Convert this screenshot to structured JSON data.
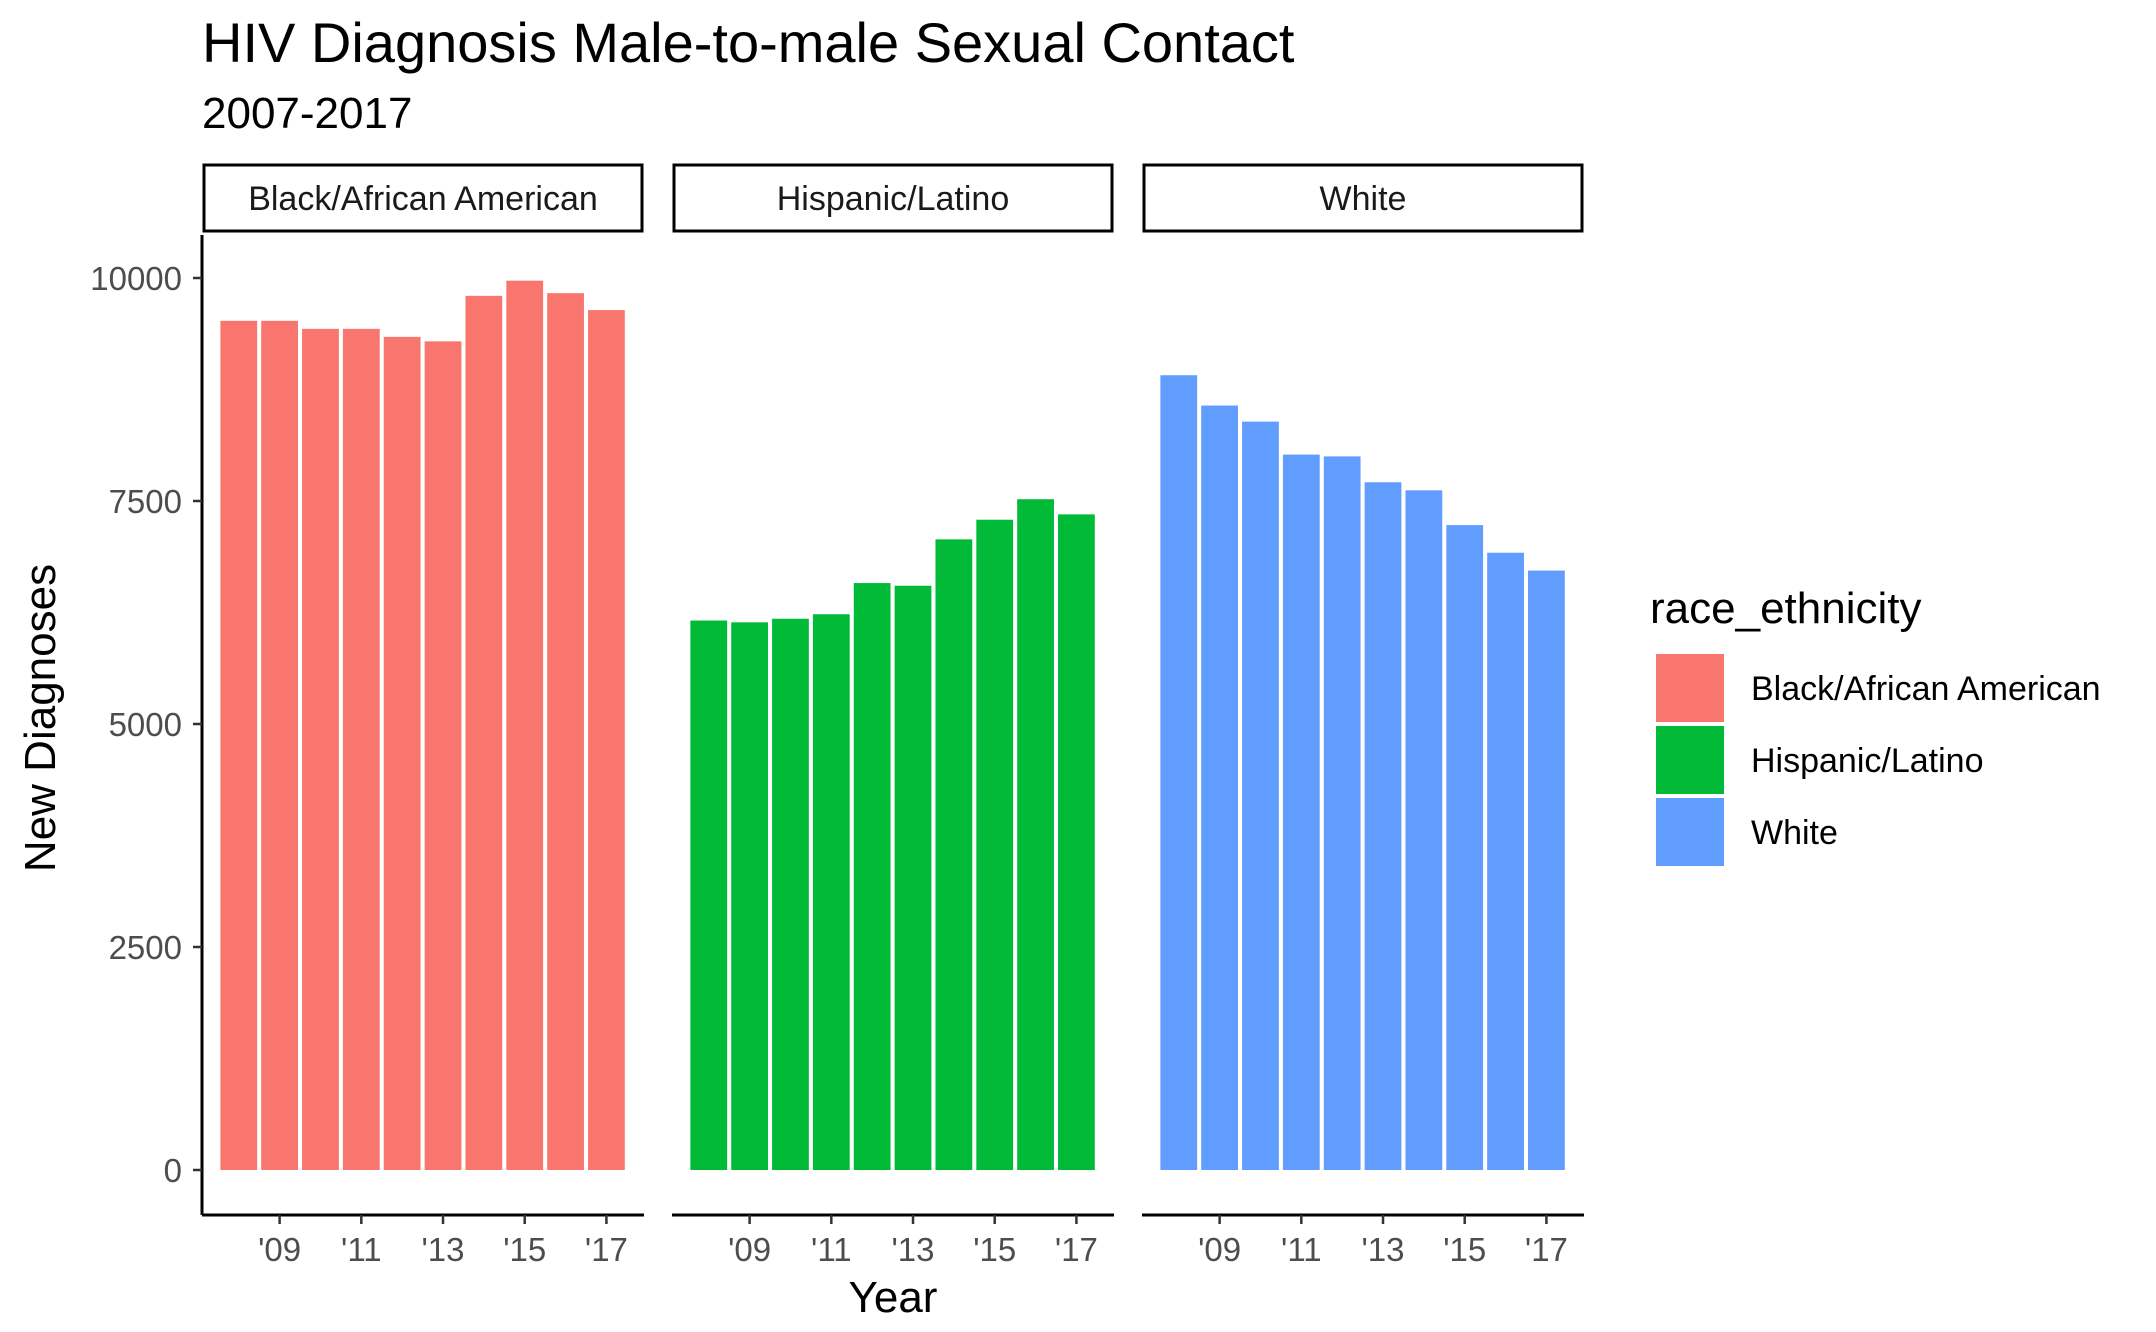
{
  "chart_data": {
    "type": "bar",
    "title": "HIV Diagnosis Male-to-male Sexual Contact",
    "subtitle": "2007-2017",
    "xlabel": "Year",
    "ylabel": "New Diagnoses",
    "ylim": [
      0,
      10500
    ],
    "y_ticks": [
      0,
      2500,
      5000,
      7500,
      10000
    ],
    "x_ticks": [
      2009,
      2011,
      2013,
      2015,
      2017
    ],
    "x_tick_labels": [
      "'09",
      "'11",
      "'13",
      "'15",
      "'17"
    ],
    "x": [
      2008,
      2009,
      2010,
      2011,
      2012,
      2013,
      2014,
      2015,
      2016,
      2017
    ],
    "grid": false,
    "legend": {
      "title": "race_ethnicity",
      "position": "right",
      "entries": [
        "Black/African American",
        "Hispanic/Latino",
        "White"
      ]
    },
    "series": [
      {
        "name": "Black/African American",
        "color": "#F8766D",
        "values": [
          9520,
          9520,
          9430,
          9430,
          9340,
          9290,
          9800,
          9970,
          9830,
          9640
        ]
      },
      {
        "name": "Hispanic/Latino",
        "color": "#00BA38",
        "values": [
          6160,
          6140,
          6180,
          6230,
          6580,
          6550,
          7070,
          7290,
          7520,
          7350
        ]
      },
      {
        "name": "White",
        "color": "#619CFF",
        "values": [
          8910,
          8570,
          8390,
          8020,
          8000,
          7710,
          7620,
          7230,
          6920,
          6720
        ]
      }
    ]
  }
}
